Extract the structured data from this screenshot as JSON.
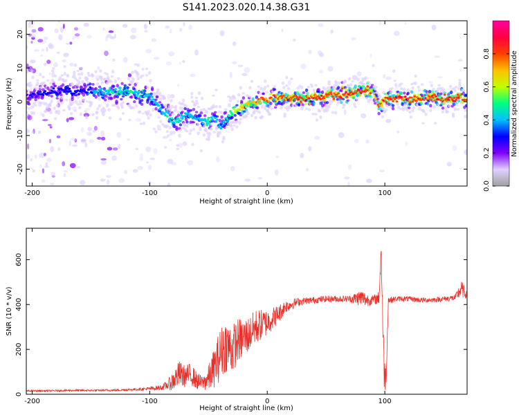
{
  "figure": {
    "title": "S141.2023.020.14.38.G31"
  },
  "chart_data": [
    {
      "type": "heatmap",
      "xlabel": "Height of straight line (km)",
      "ylabel": "Frequency (Hz)",
      "xlim": [
        -205,
        170
      ],
      "ylim": [
        -25,
        24
      ],
      "xticks": [
        -200,
        -100,
        0,
        100
      ],
      "yticks": [
        -20,
        -10,
        0,
        10,
        20
      ],
      "colorbar": {
        "label": "Normalized spectral amplitude",
        "range": [
          0.0,
          1.0
        ],
        "ticks": [
          0.0,
          0.2,
          0.4,
          0.6,
          0.8
        ],
        "colormap": [
          "#a0a0a0",
          "#e0d0ff",
          "#8000ff",
          "#0000ff",
          "#00c0ff",
          "#00ff80",
          "#c0ff00",
          "#ffc000",
          "#ff4000",
          "#ff0040",
          "#ff00a0"
        ]
      },
      "ridge": {
        "x": [
          -200,
          -180,
          -160,
          -140,
          -130,
          -120,
          -110,
          -100,
          -90,
          -80,
          -70,
          -60,
          -50,
          -45,
          -40,
          -35,
          -30,
          -20,
          -10,
          0,
          10,
          20,
          40,
          60,
          70,
          80,
          85,
          90,
          95,
          100,
          110,
          120,
          140,
          160,
          170
        ],
        "frequency_hz": [
          2,
          3,
          3,
          3,
          3,
          3,
          3,
          2,
          -2,
          -6,
          -4,
          -5,
          -6,
          -4,
          -8,
          -5,
          -3,
          -1,
          0,
          1,
          1,
          1,
          1,
          2,
          2,
          3,
          4,
          3,
          -1,
          1,
          1,
          1,
          1,
          1,
          1
        ],
        "amplitude": [
          0.25,
          0.3,
          0.3,
          0.4,
          0.45,
          0.45,
          0.45,
          0.4,
          0.4,
          0.45,
          0.4,
          0.4,
          0.45,
          0.4,
          0.35,
          0.45,
          0.55,
          0.65,
          0.7,
          0.75,
          0.75,
          0.8,
          0.8,
          0.8,
          0.82,
          0.85,
          0.85,
          0.6,
          0.75,
          0.8,
          0.8,
          0.8,
          0.8,
          0.8,
          0.75
        ]
      }
    },
    {
      "type": "line",
      "xlabel": "Height of straight line (km)",
      "ylabel": "SNR (10 * v/v)",
      "xlim": [
        -205,
        170
      ],
      "ylim": [
        0,
        740
      ],
      "xticks": [
        -200,
        -100,
        0,
        100
      ],
      "yticks": [
        0,
        200,
        400,
        600
      ],
      "series": [
        {
          "color": "#e8302a",
          "x": [
            -205,
            -190,
            -170,
            -150,
            -130,
            -110,
            -100,
            -90,
            -85,
            -80,
            -75,
            -70,
            -65,
            -60,
            -55,
            -50,
            -45,
            -40,
            -35,
            -30,
            -25,
            -20,
            -15,
            -10,
            -5,
            0,
            5,
            10,
            15,
            20,
            25,
            30,
            40,
            50,
            60,
            70,
            80,
            85,
            90,
            95,
            97,
            99,
            101,
            103,
            105,
            110,
            120,
            130,
            140,
            150,
            160,
            165,
            170
          ],
          "values": [
            15,
            15,
            17,
            17,
            18,
            22,
            25,
            30,
            40,
            60,
            90,
            80,
            90,
            60,
            50,
            70,
            120,
            180,
            220,
            200,
            240,
            250,
            270,
            300,
            310,
            320,
            340,
            360,
            390,
            400,
            410,
            415,
            420,
            425,
            425,
            425,
            430,
            420,
            420,
            430,
            640,
            150,
            60,
            420,
            420,
            425,
            425,
            420,
            420,
            425,
            430,
            470,
            440
          ],
          "spread": [
            4,
            4,
            4,
            4,
            5,
            6,
            8,
            12,
            20,
            45,
            60,
            50,
            50,
            40,
            30,
            60,
            90,
            120,
            120,
            110,
            100,
            90,
            80,
            80,
            70,
            60,
            50,
            40,
            30,
            25,
            20,
            15,
            15,
            15,
            15,
            15,
            40,
            30,
            20,
            30,
            80,
            120,
            60,
            20,
            15,
            12,
            12,
            12,
            12,
            12,
            15,
            40,
            15
          ]
        }
      ]
    }
  ]
}
